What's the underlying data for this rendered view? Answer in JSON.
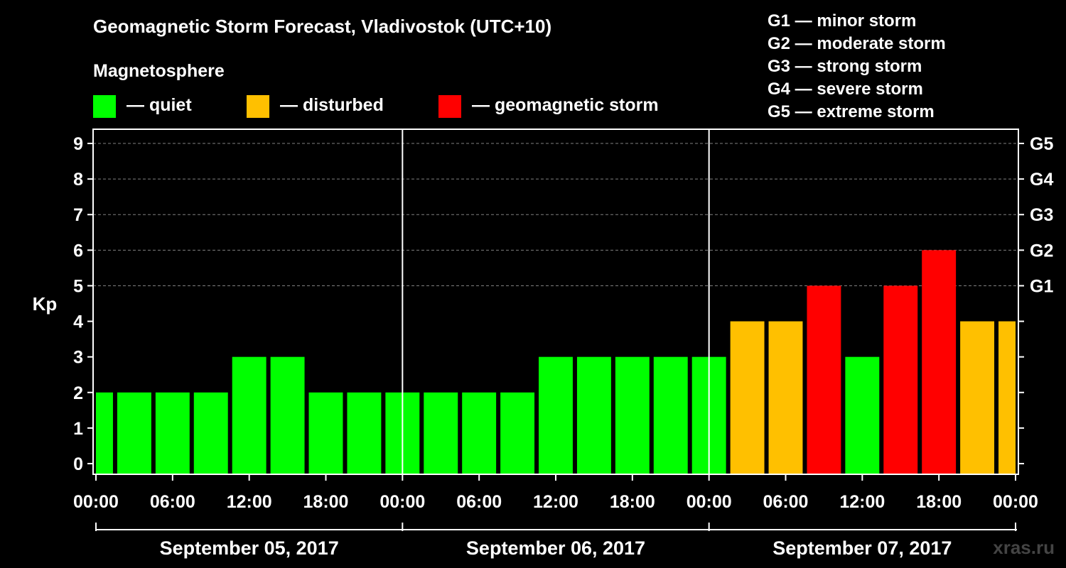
{
  "title": "Geomagnetic Storm Forecast, Vladivostok (UTC+10)",
  "magnetosphere": {
    "title": "Magnetosphere",
    "items": [
      {
        "label": "— quiet",
        "color": "#00ff00"
      },
      {
        "label": "— disturbed",
        "color": "#ffc000"
      },
      {
        "label": "— geomagnetic storm",
        "color": "#ff0000"
      }
    ]
  },
  "g_legend": [
    "G1 — minor storm",
    "G2 — moderate storm",
    "G3 — strong storm",
    "G4 — severe storm",
    "G5 — extreme storm"
  ],
  "watermark": "xras.ru",
  "chart_data": {
    "type": "bar",
    "ylabel": "Kp",
    "ylim": [
      0,
      9
    ],
    "yticks": [
      0,
      1,
      2,
      3,
      4,
      5,
      6,
      7,
      8,
      9
    ],
    "g_ticks": [
      {
        "kp": 5,
        "label": "G1"
      },
      {
        "kp": 6,
        "label": "G2"
      },
      {
        "kp": 7,
        "label": "G3"
      },
      {
        "kp": 8,
        "label": "G4"
      },
      {
        "kp": 9,
        "label": "G5"
      }
    ],
    "x_tick_labels": [
      "00:00",
      "06:00",
      "12:00",
      "18:00",
      "00:00",
      "06:00",
      "12:00",
      "18:00",
      "00:00",
      "06:00",
      "12:00",
      "18:00",
      "00:00"
    ],
    "days": [
      "September 05, 2017",
      "September 06, 2017",
      "September 07, 2017"
    ],
    "interval_hours": 3,
    "values": [
      2,
      2,
      2,
      2,
      3,
      3,
      2,
      2,
      2,
      2,
      2,
      2,
      3,
      3,
      3,
      3,
      3,
      4,
      4,
      5,
      3,
      5,
      6,
      4,
      4
    ],
    "status": [
      "quiet",
      "quiet",
      "quiet",
      "quiet",
      "quiet",
      "quiet",
      "quiet",
      "quiet",
      "quiet",
      "quiet",
      "quiet",
      "quiet",
      "quiet",
      "quiet",
      "quiet",
      "quiet",
      "quiet",
      "disturbed",
      "disturbed",
      "storm",
      "quiet",
      "storm",
      "storm",
      "disturbed",
      "disturbed"
    ],
    "status_colors": {
      "quiet": "#00ff00",
      "disturbed": "#ffc000",
      "storm": "#ff0000"
    },
    "grid": true
  }
}
